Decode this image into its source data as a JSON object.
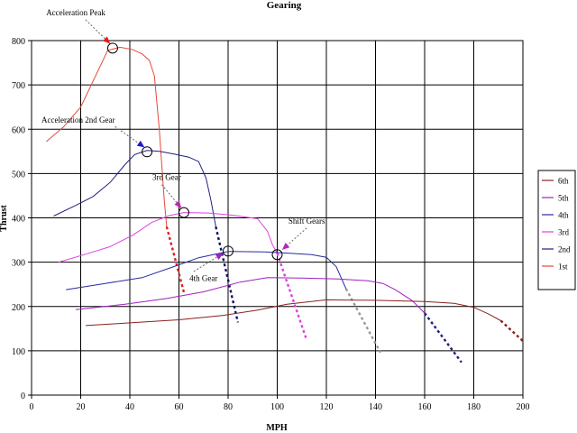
{
  "chart_data": {
    "type": "line",
    "title": "Gearing",
    "xlabel": "MPH",
    "ylabel": "Thrust",
    "xlim": [
      0,
      200
    ],
    "ylim": [
      0,
      800
    ],
    "x_ticks": [
      "0",
      "20",
      "40",
      "60",
      "80",
      "100",
      "120",
      "140",
      "160",
      "180",
      "200"
    ],
    "y_ticks": [
      "0",
      "100",
      "200",
      "300",
      "400",
      "500",
      "600",
      "700",
      "800"
    ],
    "grid": "horizontal and vertical",
    "legend_position": "right",
    "legend_order": [
      "6th",
      "5th",
      "4th",
      "3rd",
      "2nd",
      "1st"
    ],
    "series": [
      {
        "name": "1st",
        "color": "#e34a3a",
        "points": [
          [
            6,
            572
          ],
          [
            13,
            605
          ],
          [
            20,
            650
          ],
          [
            26,
            720
          ],
          [
            31,
            778
          ],
          [
            36,
            785
          ],
          [
            41,
            780
          ],
          [
            45,
            770
          ],
          [
            48,
            755
          ],
          [
            50,
            720
          ],
          [
            51,
            660
          ],
          [
            52,
            600
          ],
          [
            53,
            520
          ],
          [
            54,
            440
          ],
          [
            55,
            380
          ]
        ]
      },
      {
        "name": "2nd",
        "color": "#1f1f80",
        "points": [
          [
            9,
            404
          ],
          [
            18,
            428
          ],
          [
            25,
            448
          ],
          [
            32,
            480
          ],
          [
            38,
            520
          ],
          [
            42,
            543
          ],
          [
            47,
            552
          ],
          [
            52,
            550
          ],
          [
            58,
            544
          ],
          [
            64,
            537
          ],
          [
            68,
            527
          ],
          [
            71,
            490
          ],
          [
            73,
            440
          ],
          [
            75,
            380
          ]
        ]
      },
      {
        "name": "3rd",
        "color": "#e040e0",
        "points": [
          [
            11,
            300
          ],
          [
            22,
            318
          ],
          [
            32,
            335
          ],
          [
            41,
            360
          ],
          [
            49,
            390
          ],
          [
            56,
            405
          ],
          [
            62,
            412
          ],
          [
            72,
            411
          ],
          [
            82,
            406
          ],
          [
            92,
            398
          ],
          [
            96,
            370
          ],
          [
            98,
            340
          ],
          [
            100,
            320
          ]
        ]
      },
      {
        "name": "4th",
        "color": "#2a2aa0",
        "points": [
          [
            14,
            238
          ],
          [
            30,
            252
          ],
          [
            45,
            265
          ],
          [
            58,
            290
          ],
          [
            68,
            310
          ],
          [
            80,
            324
          ],
          [
            95,
            323
          ],
          [
            105,
            320
          ],
          [
            114,
            317
          ],
          [
            120,
            311
          ],
          [
            124,
            290
          ],
          [
            128,
            240
          ]
        ]
      },
      {
        "name": "5th",
        "color": "#a020c0",
        "points": [
          [
            18,
            193
          ],
          [
            38,
            205
          ],
          [
            55,
            218
          ],
          [
            70,
            233
          ],
          [
            85,
            255
          ],
          [
            96,
            265
          ],
          [
            110,
            264
          ],
          [
            125,
            262
          ],
          [
            137,
            258
          ],
          [
            143,
            252
          ],
          [
            148,
            238
          ],
          [
            155,
            213
          ],
          [
            160,
            185
          ]
        ]
      },
      {
        "name": "6th",
        "color": "#8b2020",
        "points": [
          [
            22,
            157
          ],
          [
            40,
            163
          ],
          [
            60,
            170
          ],
          [
            78,
            180
          ],
          [
            92,
            192
          ],
          [
            104,
            205
          ],
          [
            120,
            215
          ],
          [
            140,
            214
          ],
          [
            160,
            211
          ],
          [
            172,
            207
          ],
          [
            180,
            198
          ],
          [
            186,
            183
          ],
          [
            191,
            168
          ]
        ]
      }
    ],
    "shift_lines": [
      {
        "color": "#e31a1a",
        "points": [
          [
            55,
            380
          ],
          [
            62,
            232
          ]
        ]
      },
      {
        "color": "#111166",
        "points": [
          [
            75,
            380
          ],
          [
            84,
            164
          ]
        ]
      },
      {
        "color": "#e040e0",
        "points": [
          [
            100,
            320
          ],
          [
            112,
            124
          ]
        ]
      },
      {
        "color": "#999999",
        "points": [
          [
            128,
            240
          ],
          [
            142,
            96
          ]
        ]
      },
      {
        "color": "#1f1f80",
        "points": [
          [
            160,
            185
          ],
          [
            175,
            74
          ]
        ]
      },
      {
        "color": "#8b2020",
        "points": [
          [
            191,
            168
          ],
          [
            200,
            122
          ]
        ]
      }
    ],
    "circle_markers": [
      [
        33,
        783
      ],
      [
        47,
        549
      ],
      [
        62,
        412
      ],
      [
        80,
        325
      ],
      [
        100,
        317
      ]
    ],
    "annotations": [
      {
        "text": "Acceleration Peak",
        "label_at": [
          18,
          857
        ],
        "from": [
          22,
          847
        ],
        "arrow_to": [
          32,
          793
        ],
        "color": "#e31a1a"
      },
      {
        "text": "Acceleration 2nd Gear",
        "label_at": [
          19,
          615
        ],
        "from": [
          34,
          606
        ],
        "arrow_to": [
          46,
          559
        ],
        "color": "#1a1ad0"
      },
      {
        "text": "3rd Gear",
        "label_at": [
          55,
          486
        ],
        "from": [
          53,
          475
        ],
        "arrow_to": [
          61,
          422
        ],
        "color": "#c020c0"
      },
      {
        "text": "4th Gear",
        "label_at": [
          70,
          257
        ],
        "from": [
          66,
          279
        ],
        "arrow_to": [
          78,
          320
        ],
        "color": "#a020c0"
      },
      {
        "text": "Shift Gears",
        "label_at": [
          112,
          387
        ],
        "from": [
          112,
          377
        ],
        "arrow_to": [
          102,
          328
        ],
        "color": "#c020c0"
      }
    ]
  }
}
